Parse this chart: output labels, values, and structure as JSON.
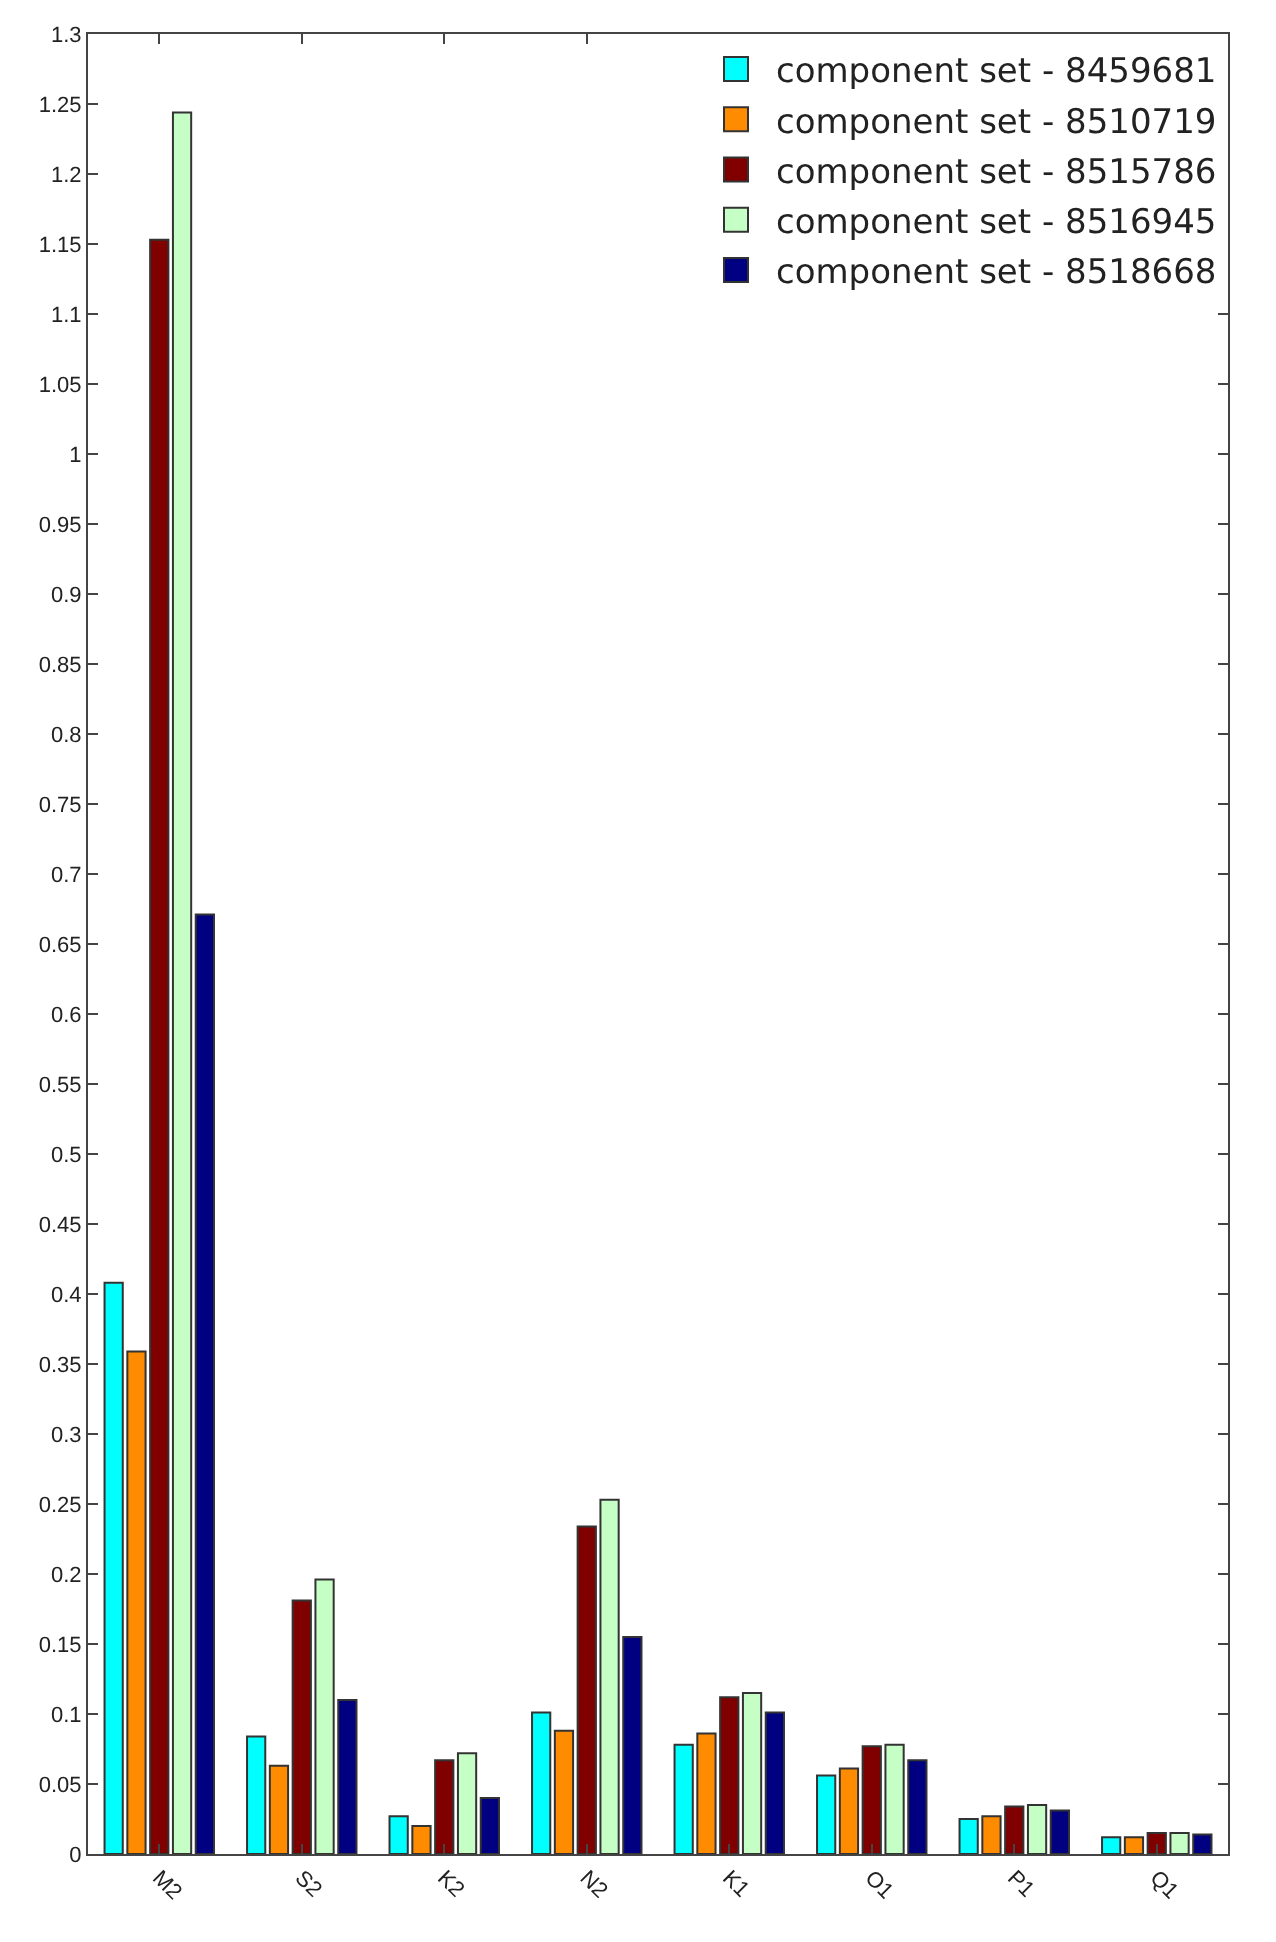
{
  "chart_data": {
    "type": "bar",
    "categories": [
      "M2",
      "S2",
      "K2",
      "N2",
      "K1",
      "O1",
      "P1",
      "Q1"
    ],
    "series": [
      {
        "name": "component set - 8459681",
        "color": "#00ffff",
        "values": [
          0.408,
          0.084,
          0.027,
          0.101,
          0.078,
          0.056,
          0.025,
          0.012
        ]
      },
      {
        "name": "component set - 8510719",
        "color": "#ff8c00",
        "values": [
          0.359,
          0.063,
          0.02,
          0.088,
          0.086,
          0.061,
          0.027,
          0.012
        ]
      },
      {
        "name": "component set - 8515786",
        "color": "#800000",
        "values": [
          1.153,
          0.181,
          0.067,
          0.234,
          0.112,
          0.077,
          0.034,
          0.015
        ]
      },
      {
        "name": "component set - 8516945",
        "color": "#c6ffc6",
        "values": [
          1.244,
          0.196,
          0.072,
          0.253,
          0.115,
          0.078,
          0.035,
          0.015
        ]
      },
      {
        "name": "component set - 8518668",
        "color": "#000080",
        "values": [
          0.671,
          0.11,
          0.04,
          0.155,
          0.101,
          0.067,
          0.031,
          0.014
        ]
      }
    ],
    "ylim": [
      0,
      1.3
    ],
    "yticks": [
      0,
      0.05,
      0.1,
      0.15,
      0.2,
      0.25,
      0.3,
      0.35,
      0.4,
      0.45,
      0.5,
      0.55,
      0.6,
      0.65,
      0.7,
      0.75,
      0.8,
      0.85,
      0.9,
      0.95,
      1,
      1.05,
      1.1,
      1.15,
      1.2,
      1.25,
      1.3
    ],
    "grid": false,
    "legend": "top right"
  }
}
